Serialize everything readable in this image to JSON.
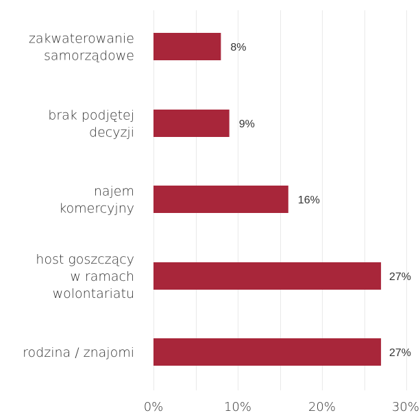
{
  "chart_data": {
    "type": "bar",
    "orientation": "horizontal",
    "title": "",
    "xlabel": "",
    "ylabel": "",
    "categories": [
      [
        "zakwaterowanie",
        "samorządowe"
      ],
      [
        "brak podjętej",
        "decyzji"
      ],
      [
        "najem",
        "komercyjny"
      ],
      [
        "host goszczący",
        "w ramach",
        "wolontariatu"
      ],
      [
        "rodzina / znajomi"
      ]
    ],
    "values": [
      8,
      9,
      16,
      27,
      27
    ],
    "value_labels": [
      "8%",
      "9%",
      "16%",
      "27%",
      "27%"
    ],
    "xlim": [
      0,
      30
    ],
    "x_ticks": [
      0,
      5,
      10,
      15,
      20,
      25,
      30
    ],
    "x_tick_labels": [
      "0%",
      "",
      "10%",
      "",
      "20%",
      "",
      "30%"
    ],
    "grid": true,
    "legend": "none",
    "colors": {
      "bar": "#a8263a",
      "grid": "#e9e9e9",
      "text": "#333333"
    }
  }
}
